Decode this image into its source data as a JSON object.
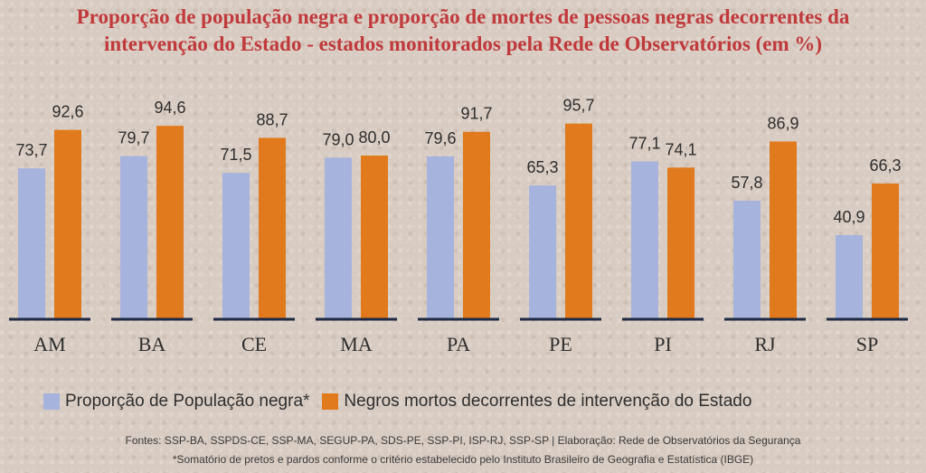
{
  "chart_data": {
    "type": "bar",
    "title_line1": "Proporção de população negra e proporção de mortes de pessoas negras decorrentes da",
    "title_line2": "intervenção do Estado - estados monitorados pela Rede de Observatórios (em %)",
    "categories": [
      "AM",
      "BA",
      "CE",
      "MA",
      "PA",
      "PE",
      "PI",
      "RJ",
      "SP"
    ],
    "series": [
      {
        "name": "Proporção de População negra*",
        "color": "#a5b3dd",
        "values": [
          73.7,
          79.7,
          71.5,
          79.0,
          79.6,
          65.3,
          77.1,
          57.8,
          40.9
        ],
        "labels": [
          "73,7",
          "79,7",
          "71,5",
          "79,0",
          "79,6",
          "65,3",
          "77,1",
          "57,8",
          "40,9"
        ]
      },
      {
        "name": "Negros mortos decorrentes de intervenção do Estado",
        "color": "#e07a1c",
        "values": [
          92.6,
          94.6,
          88.7,
          80.0,
          91.7,
          95.7,
          74.1,
          86.9,
          66.3
        ],
        "labels": [
          "92,6",
          "94,6",
          "88,7",
          "80,0",
          "91,7",
          "95,7",
          "74,1",
          "86,9",
          "66,3"
        ]
      }
    ],
    "ylim": [
      0,
      100
    ],
    "legend_position": "bottom-left",
    "sources": "Fontes: SSP-BA, SSPDS-CE, SSP-MA, SEGUP-PA, SDS-PE, SSP-PI, ISP-RJ, SSP-SP | Elaboração: Rede de Observatórios da Segurança",
    "footnote": "*Somatório de pretos e pardos conforme o critério estabelecido pelo Instituto Brasileiro de Geografia e Estatística (IBGE)"
  }
}
